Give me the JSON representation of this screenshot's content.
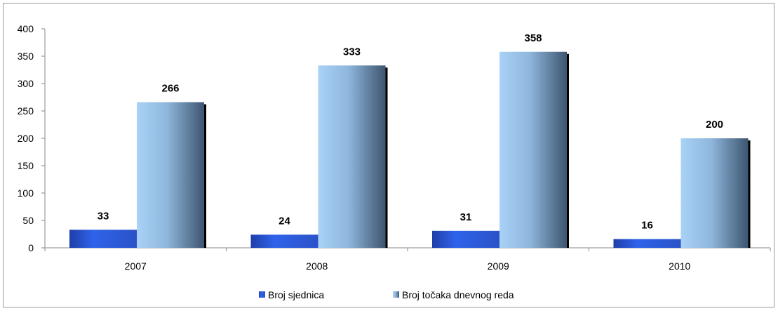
{
  "chart_data": {
    "type": "bar",
    "categories": [
      "2007",
      "2008",
      "2009",
      "2010"
    ],
    "series": [
      {
        "name": "Broj sjednica",
        "values": [
          33,
          24,
          31,
          16
        ],
        "color": "#2f5fe8"
      },
      {
        "name": "Broj točaka dnevnog reda",
        "values": [
          266,
          333,
          358,
          200
        ],
        "color": "#9cc8f2"
      }
    ],
    "y_ticks": [
      "0",
      "50",
      "100",
      "150",
      "200",
      "250",
      "300",
      "350",
      "400"
    ],
    "ylim": [
      0,
      400
    ],
    "grid": false,
    "legend": "bottom",
    "data_labels": true
  }
}
